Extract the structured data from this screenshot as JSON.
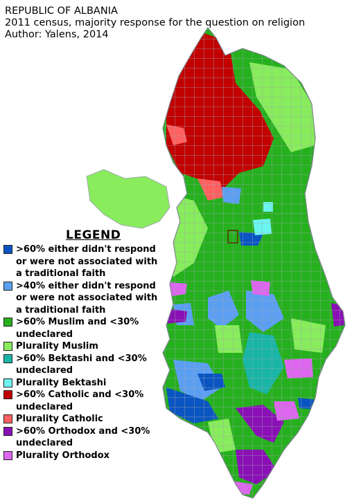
{
  "title": {
    "line1": "REPUBLIC OF ALBANIA",
    "line2": "2011 census, majority response for the question on religion",
    "line3": "Author: Yalens, 2014"
  },
  "legend": {
    "heading": "LEGEND",
    "items": [
      {
        "label": ">60% either didn't respond\nor were not associated with\na traditional faith",
        "color": "#0a55c2"
      },
      {
        "label": ">40% either didn't respond\nor were not associated with\na traditional faith",
        "color": "#5c9ff2"
      },
      {
        "label": ">60% Muslim and <30%\nundeclared",
        "color": "#26b01e"
      },
      {
        "label": "Plurality Muslim",
        "color": "#88ec5c"
      },
      {
        "label": ">60% Bektashi and <30%\nundeclared",
        "color": "#19b5a5"
      },
      {
        "label": "Plurality Bektashi",
        "color": "#6cf5f0"
      },
      {
        "label": ">60% Catholic and <30%\nundeclared",
        "color": "#c20000"
      },
      {
        "label": "Plurality Catholic",
        "color": "#ff6060"
      },
      {
        "label": ">60% Orthodox and <30%\nundeclared",
        "color": "#8a0fb5"
      },
      {
        "label": "Plurality Orthodox",
        "color": "#dd66ee"
      }
    ]
  }
}
